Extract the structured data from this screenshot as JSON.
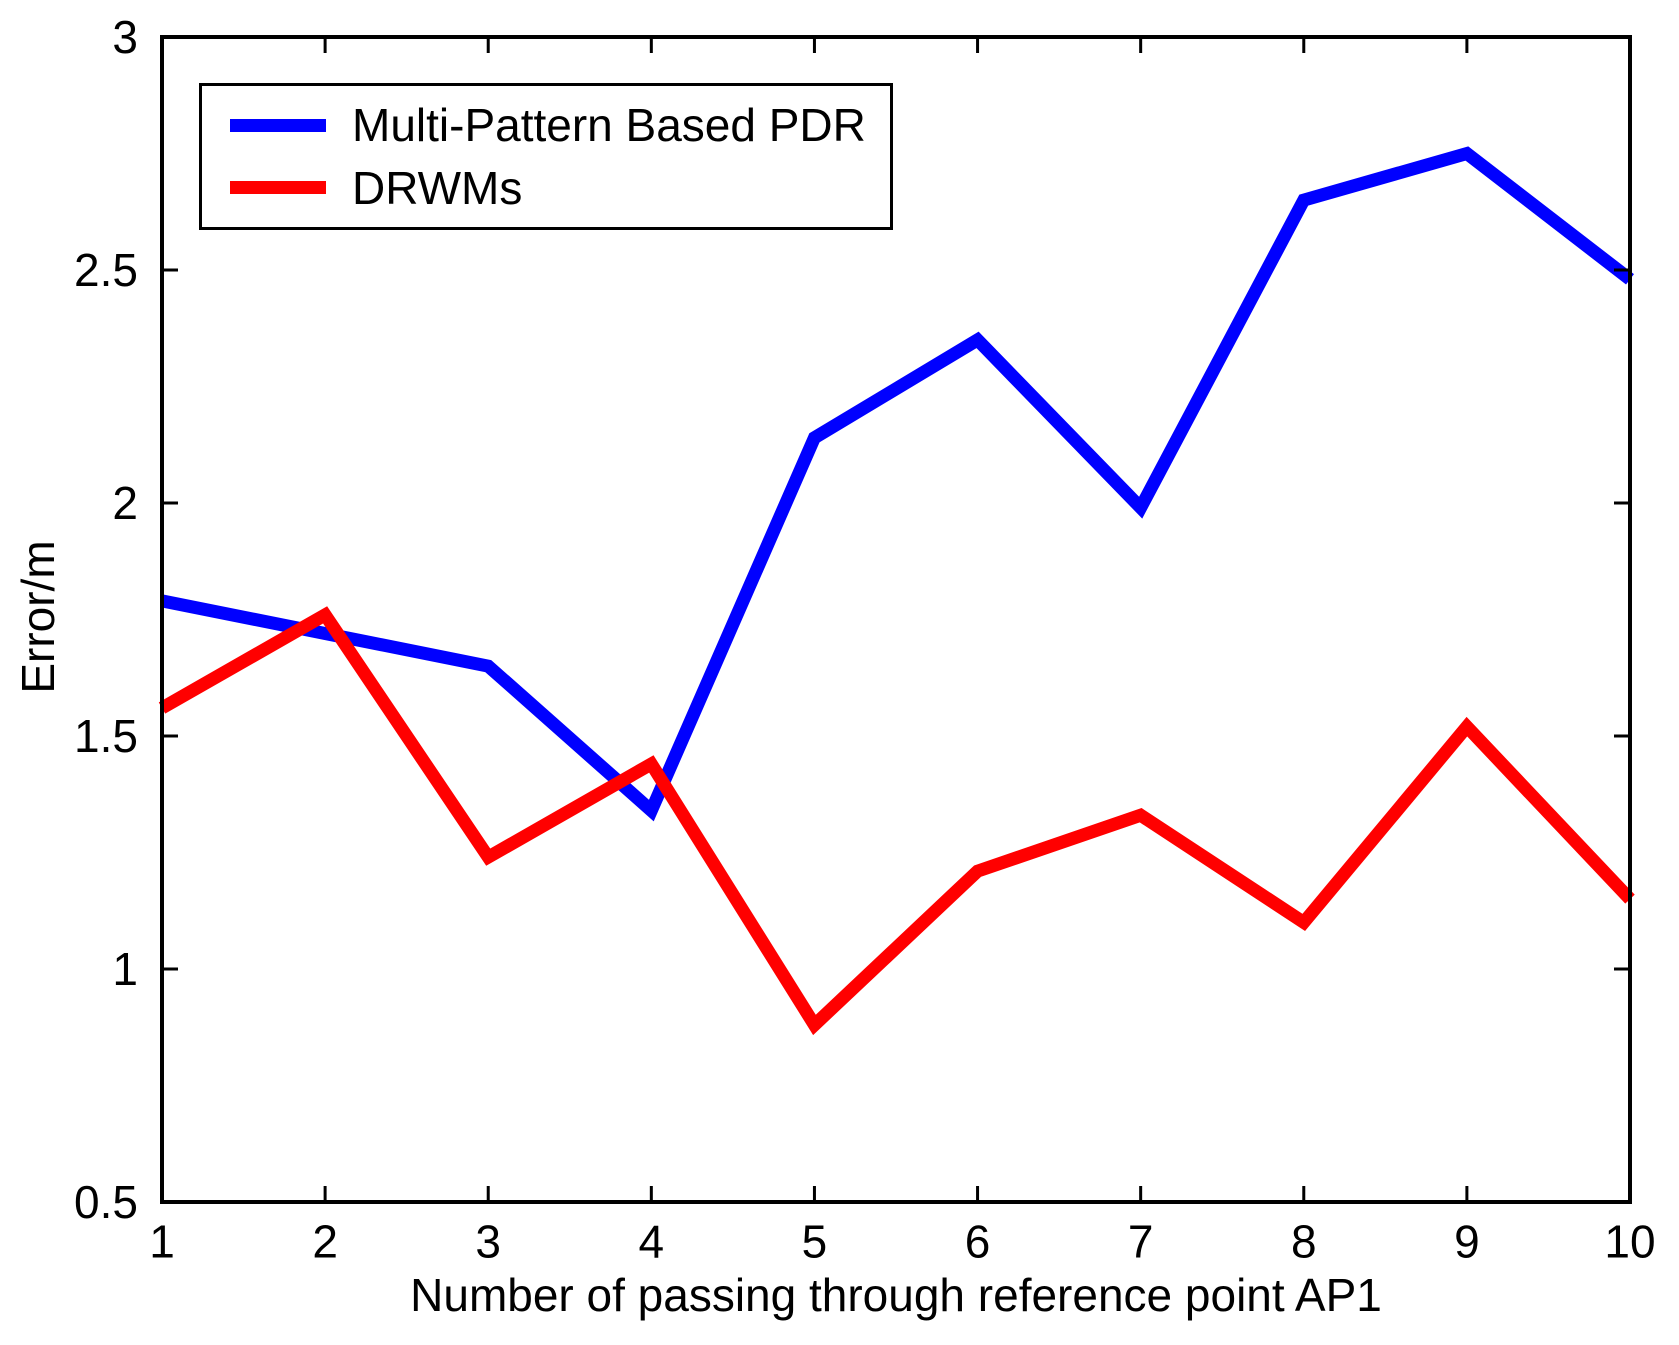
{
  "figure": {
    "background": "#ffffff",
    "axis_color": "#000000"
  },
  "chart_data": {
    "type": "line",
    "x": [
      1,
      2,
      3,
      4,
      5,
      6,
      7,
      8,
      9,
      10
    ],
    "series": [
      {
        "name": "Multi-Pattern Based PDR",
        "color": "#0000ff",
        "values": [
          1.79,
          1.72,
          1.65,
          1.34,
          2.14,
          2.35,
          1.99,
          2.65,
          2.75,
          2.48
        ]
      },
      {
        "name": "DRWMs",
        "color": "#ff0000",
        "values": [
          1.56,
          1.76,
          1.24,
          1.44,
          0.88,
          1.21,
          1.33,
          1.1,
          1.52,
          1.15
        ]
      }
    ],
    "xlabel": "Number of passing through reference point AP1",
    "ylabel": "Error/m",
    "xlim": [
      1,
      10
    ],
    "ylim": [
      0.5,
      3
    ],
    "xticks": [
      "1",
      "2",
      "3",
      "4",
      "5",
      "6",
      "7",
      "8",
      "9",
      "10"
    ],
    "yticks": [
      "0.5",
      "1",
      "1.5",
      "2",
      "2.5",
      "3"
    ],
    "grid": false,
    "legend_position": "top-left",
    "legend_border": true
  }
}
